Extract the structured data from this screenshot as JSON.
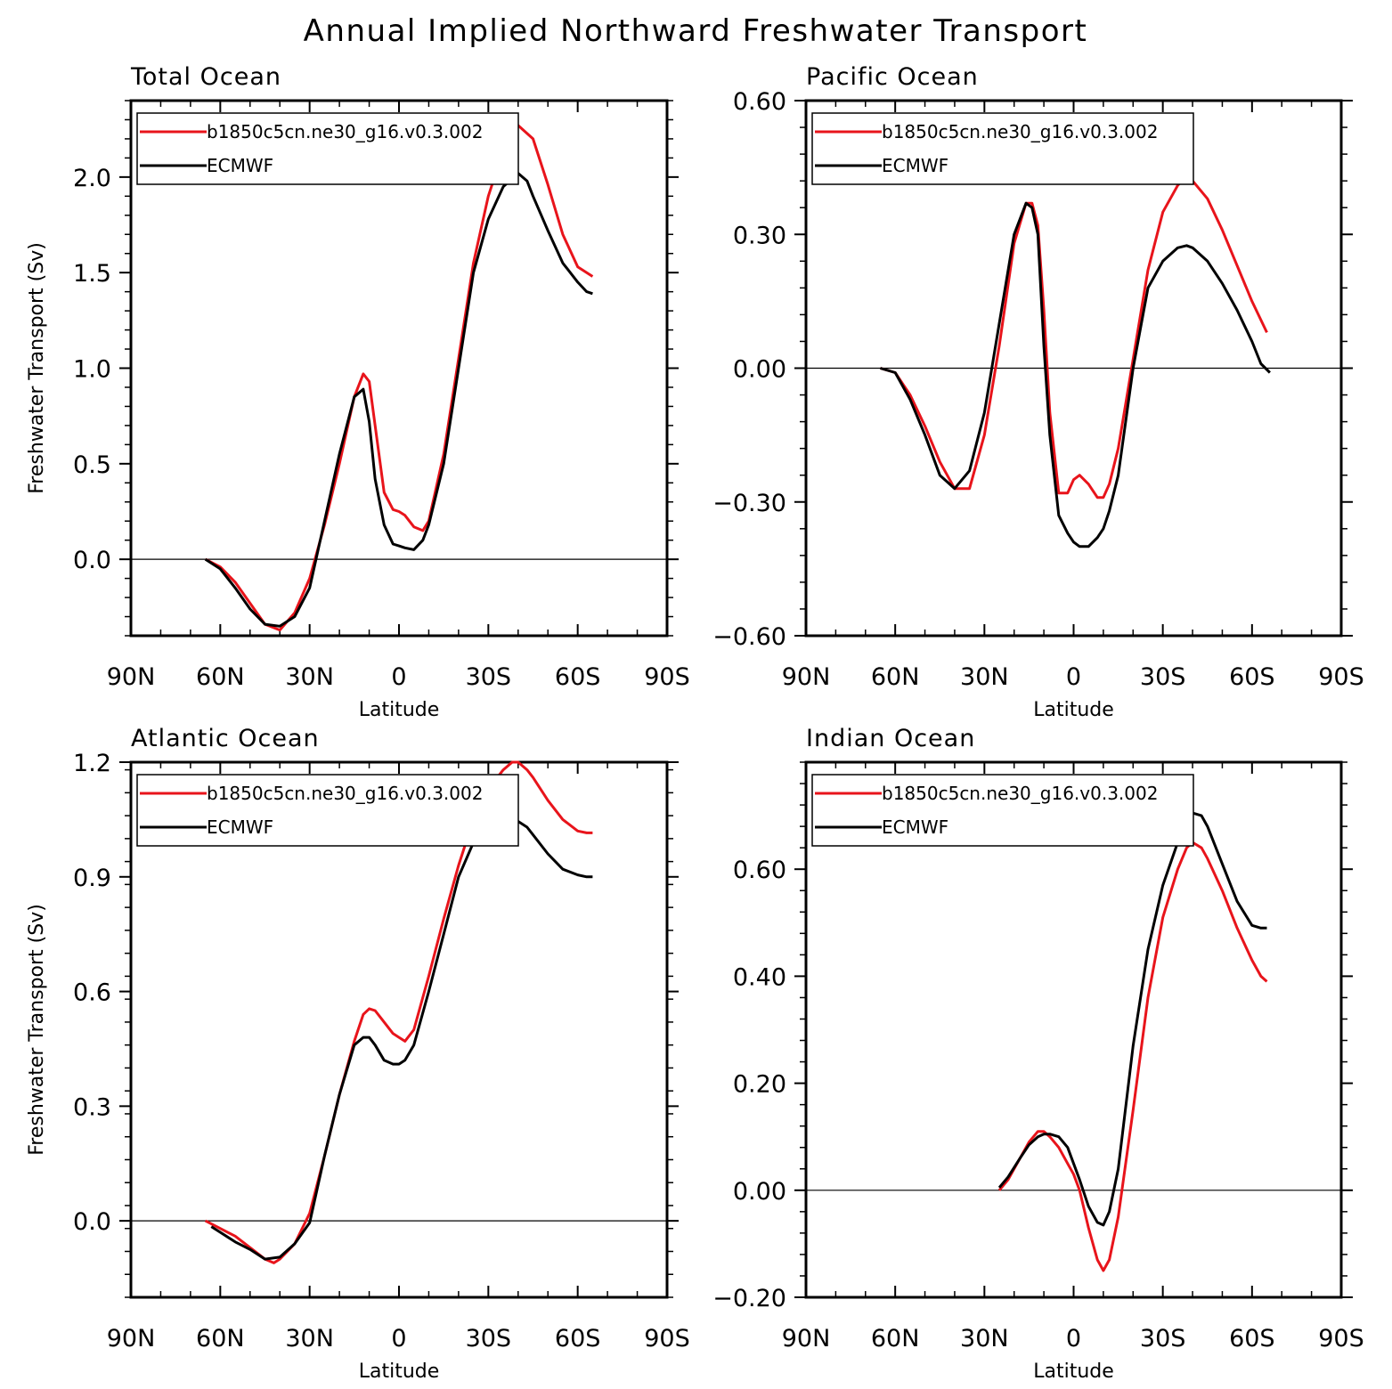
{
  "figure": {
    "title": "Annual Implied Northward Freshwater Transport"
  },
  "colors": {
    "model": "#e8141b",
    "obs": "#000000"
  },
  "chart_data": [
    {
      "type": "line",
      "title": "Total Ocean",
      "xlabel": "Latitude",
      "ylabel": "Freshwater Transport (Sv)",
      "xlim": [
        90,
        -90
      ],
      "ylim": [
        -0.4,
        2.4
      ],
      "xticks": [
        90,
        60,
        30,
        0,
        -30,
        -60,
        -90
      ],
      "xticklabels": [
        "90N",
        "60N",
        "30N",
        "0",
        "30S",
        "60S",
        "90S"
      ],
      "yticks": [
        0.0,
        0.5,
        1.0,
        1.5,
        2.0
      ],
      "yticklabels": [
        "0.0",
        "0.5",
        "1.0",
        "1.5",
        "2.0"
      ],
      "zero_line": true,
      "legend": {
        "position": "top-left",
        "entries": [
          "b1850c5cn.ne30_g16.v0.3.002",
          "ECMWF"
        ]
      },
      "series": [
        {
          "name": "b1850c5cn.ne30_g16.v0.3.002",
          "color": "#e8141b",
          "x": [
            65,
            60,
            55,
            50,
            45,
            40,
            35,
            30,
            25,
            20,
            15,
            12,
            10,
            8,
            5,
            2,
            0,
            -2,
            -5,
            -8,
            -10,
            -15,
            -20,
            -25,
            -30,
            -35,
            -40,
            -45,
            -50,
            -55,
            -60,
            -65
          ],
          "y": [
            0.0,
            -0.04,
            -0.12,
            -0.23,
            -0.34,
            -0.37,
            -0.28,
            -0.1,
            0.18,
            0.5,
            0.85,
            0.97,
            0.93,
            0.7,
            0.35,
            0.26,
            0.25,
            0.23,
            0.17,
            0.15,
            0.2,
            0.55,
            1.05,
            1.55,
            1.9,
            2.14,
            2.27,
            2.2,
            1.96,
            1.7,
            1.53,
            1.48
          ]
        },
        {
          "name": "ECMWF",
          "color": "#000000",
          "x": [
            65,
            60,
            55,
            50,
            45,
            40,
            35,
            30,
            25,
            20,
            15,
            12,
            10,
            8,
            5,
            2,
            0,
            -2,
            -5,
            -8,
            -10,
            -15,
            -20,
            -25,
            -30,
            -35,
            -40,
            -43,
            -45,
            -50,
            -55,
            -60,
            -63,
            -65
          ],
          "y": [
            0.0,
            -0.05,
            -0.15,
            -0.26,
            -0.34,
            -0.35,
            -0.3,
            -0.15,
            0.2,
            0.55,
            0.85,
            0.89,
            0.72,
            0.42,
            0.18,
            0.08,
            0.07,
            0.06,
            0.05,
            0.1,
            0.18,
            0.5,
            1.0,
            1.5,
            1.78,
            1.95,
            2.02,
            1.98,
            1.9,
            1.72,
            1.55,
            1.45,
            1.4,
            1.39
          ]
        }
      ]
    },
    {
      "type": "line",
      "title": "Pacific Ocean",
      "xlabel": "Latitude",
      "ylabel": "",
      "xlim": [
        90,
        -90
      ],
      "ylim": [
        -0.6,
        0.6
      ],
      "xticks": [
        90,
        60,
        30,
        0,
        -30,
        -60,
        -90
      ],
      "xticklabels": [
        "90N",
        "60N",
        "30N",
        "0",
        "30S",
        "60S",
        "90S"
      ],
      "yticks": [
        -0.6,
        -0.3,
        0.0,
        0.3,
        0.6
      ],
      "yticklabels": [
        "−0.60",
        "−0.30",
        "0.00",
        "0.30",
        "0.60"
      ],
      "zero_line": true,
      "legend": {
        "position": "top-left",
        "entries": [
          "b1850c5cn.ne30_g16.v0.3.002",
          "ECMWF"
        ]
      },
      "series": [
        {
          "name": "b1850c5cn.ne30_g16.v0.3.002",
          "color": "#e8141b",
          "x": [
            65,
            60,
            55,
            50,
            45,
            40,
            35,
            30,
            25,
            20,
            16,
            14,
            12,
            10,
            8,
            5,
            2,
            0,
            -2,
            -5,
            -8,
            -10,
            -12,
            -15,
            -20,
            -25,
            -30,
            -35,
            -38,
            -40,
            -45,
            -50,
            -55,
            -60,
            -65
          ],
          "y": [
            0.0,
            -0.01,
            -0.06,
            -0.13,
            -0.21,
            -0.27,
            -0.27,
            -0.15,
            0.05,
            0.28,
            0.37,
            0.37,
            0.32,
            0.13,
            -0.1,
            -0.28,
            -0.28,
            -0.25,
            -0.24,
            -0.26,
            -0.29,
            -0.29,
            -0.26,
            -0.18,
            0.02,
            0.22,
            0.35,
            0.41,
            0.43,
            0.42,
            0.38,
            0.31,
            0.23,
            0.15,
            0.08
          ]
        },
        {
          "name": "ECMWF",
          "color": "#000000",
          "x": [
            65,
            60,
            55,
            50,
            45,
            40,
            35,
            30,
            25,
            20,
            16,
            14,
            12,
            10,
            8,
            5,
            2,
            0,
            -2,
            -5,
            -8,
            -10,
            -12,
            -15,
            -20,
            -25,
            -30,
            -35,
            -38,
            -40,
            -45,
            -50,
            -55,
            -60,
            -63,
            -66
          ],
          "y": [
            0.0,
            -0.01,
            -0.07,
            -0.15,
            -0.24,
            -0.27,
            -0.23,
            -0.1,
            0.1,
            0.3,
            0.37,
            0.36,
            0.3,
            0.05,
            -0.15,
            -0.33,
            -0.37,
            -0.39,
            -0.4,
            -0.4,
            -0.38,
            -0.36,
            -0.32,
            -0.24,
            0.0,
            0.18,
            0.24,
            0.27,
            0.275,
            0.27,
            0.24,
            0.19,
            0.13,
            0.06,
            0.01,
            -0.01
          ]
        }
      ]
    },
    {
      "type": "line",
      "title": "Atlantic Ocean",
      "xlabel": "Latitude",
      "ylabel": "Freshwater Transport (Sv)",
      "xlim": [
        90,
        -90
      ],
      "ylim": [
        -0.2,
        1.2
      ],
      "xticks": [
        90,
        60,
        30,
        0,
        -30,
        -60,
        -90
      ],
      "xticklabels": [
        "90N",
        "60N",
        "30N",
        "0",
        "30S",
        "60S",
        "90S"
      ],
      "yticks": [
        0.0,
        0.3,
        0.6,
        0.9,
        1.2
      ],
      "yticklabels": [
        "0.0",
        "0.3",
        "0.6",
        "0.9",
        "1.2"
      ],
      "zero_line": true,
      "legend": {
        "position": "top-left",
        "entries": [
          "b1850c5cn.ne30_g16.v0.3.002",
          "ECMWF"
        ]
      },
      "series": [
        {
          "name": "b1850c5cn.ne30_g16.v0.3.002",
          "color": "#e8141b",
          "x": [
            65,
            60,
            55,
            50,
            45,
            42,
            40,
            35,
            30,
            25,
            20,
            15,
            12,
            10,
            8,
            5,
            2,
            0,
            -2,
            -5,
            -10,
            -15,
            -20,
            -25,
            -30,
            -35,
            -38,
            -40,
            -43,
            -45,
            -50,
            -55,
            -60,
            -63,
            -65
          ],
          "y": [
            0.0,
            -0.02,
            -0.04,
            -0.07,
            -0.1,
            -0.11,
            -0.1,
            -0.06,
            0.02,
            0.17,
            0.33,
            0.47,
            0.54,
            0.555,
            0.55,
            0.52,
            0.49,
            0.48,
            0.47,
            0.5,
            0.64,
            0.79,
            0.93,
            1.05,
            1.13,
            1.18,
            1.2,
            1.2,
            1.18,
            1.16,
            1.1,
            1.05,
            1.02,
            1.015,
            1.015
          ]
        },
        {
          "name": "ECMWF",
          "color": "#000000",
          "x": [
            63,
            60,
            55,
            50,
            45,
            40,
            35,
            30,
            25,
            20,
            15,
            12,
            10,
            8,
            5,
            2,
            0,
            -2,
            -5,
            -10,
            -15,
            -20,
            -25,
            -30,
            -35,
            -38,
            -40,
            -43,
            -45,
            -50,
            -55,
            -60,
            -63,
            -65
          ],
          "y": [
            -0.015,
            -0.03,
            -0.055,
            -0.075,
            -0.1,
            -0.095,
            -0.06,
            -0.005,
            0.17,
            0.33,
            0.46,
            0.48,
            0.48,
            0.46,
            0.42,
            0.41,
            0.41,
            0.42,
            0.46,
            0.6,
            0.75,
            0.9,
            0.99,
            1.02,
            1.04,
            1.045,
            1.045,
            1.03,
            1.01,
            0.96,
            0.92,
            0.905,
            0.9,
            0.9
          ]
        }
      ]
    },
    {
      "type": "line",
      "title": "Indian Ocean",
      "xlabel": "Latitude",
      "ylabel": "",
      "xlim": [
        90,
        -90
      ],
      "ylim": [
        -0.2,
        0.8
      ],
      "xticks": [
        90,
        60,
        30,
        0,
        -30,
        -60,
        -90
      ],
      "xticklabels": [
        "90N",
        "60N",
        "30N",
        "0",
        "30S",
        "60S",
        "90S"
      ],
      "yticks": [
        -0.2,
        0.0,
        0.2,
        0.4,
        0.6
      ],
      "yticklabels": [
        "−0.20",
        "0.00",
        "0.20",
        "0.40",
        "0.60"
      ],
      "zero_line": true,
      "legend": {
        "position": "top-left",
        "entries": [
          "b1850c5cn.ne30_g16.v0.3.002",
          "ECMWF"
        ]
      },
      "series": [
        {
          "name": "b1850c5cn.ne30_g16.v0.3.002",
          "color": "#e8141b",
          "x": [
            25,
            22,
            18,
            15,
            12,
            10,
            8,
            5,
            2,
            0,
            -2,
            -5,
            -8,
            -10,
            -12,
            -15,
            -20,
            -25,
            -30,
            -35,
            -38,
            -40,
            -43,
            -45,
            -50,
            -55,
            -60,
            -63,
            -65
          ],
          "y": [
            0.0,
            0.02,
            0.06,
            0.09,
            0.11,
            0.11,
            0.1,
            0.08,
            0.05,
            0.03,
            0.0,
            -0.07,
            -0.13,
            -0.15,
            -0.13,
            -0.05,
            0.15,
            0.36,
            0.51,
            0.6,
            0.64,
            0.65,
            0.64,
            0.62,
            0.56,
            0.49,
            0.43,
            0.4,
            0.39
          ]
        },
        {
          "name": "ECMWF",
          "color": "#000000",
          "x": [
            25,
            22,
            18,
            15,
            12,
            10,
            8,
            5,
            2,
            0,
            -2,
            -5,
            -8,
            -10,
            -12,
            -15,
            -20,
            -25,
            -30,
            -35,
            -38,
            -40,
            -43,
            -45,
            -50,
            -55,
            -60,
            -63,
            -65
          ],
          "y": [
            0.005,
            0.025,
            0.06,
            0.085,
            0.1,
            0.105,
            0.105,
            0.1,
            0.08,
            0.05,
            0.02,
            -0.03,
            -0.06,
            -0.065,
            -0.04,
            0.04,
            0.27,
            0.45,
            0.57,
            0.65,
            0.68,
            0.705,
            0.7,
            0.68,
            0.61,
            0.54,
            0.495,
            0.49,
            0.49
          ]
        }
      ]
    }
  ]
}
